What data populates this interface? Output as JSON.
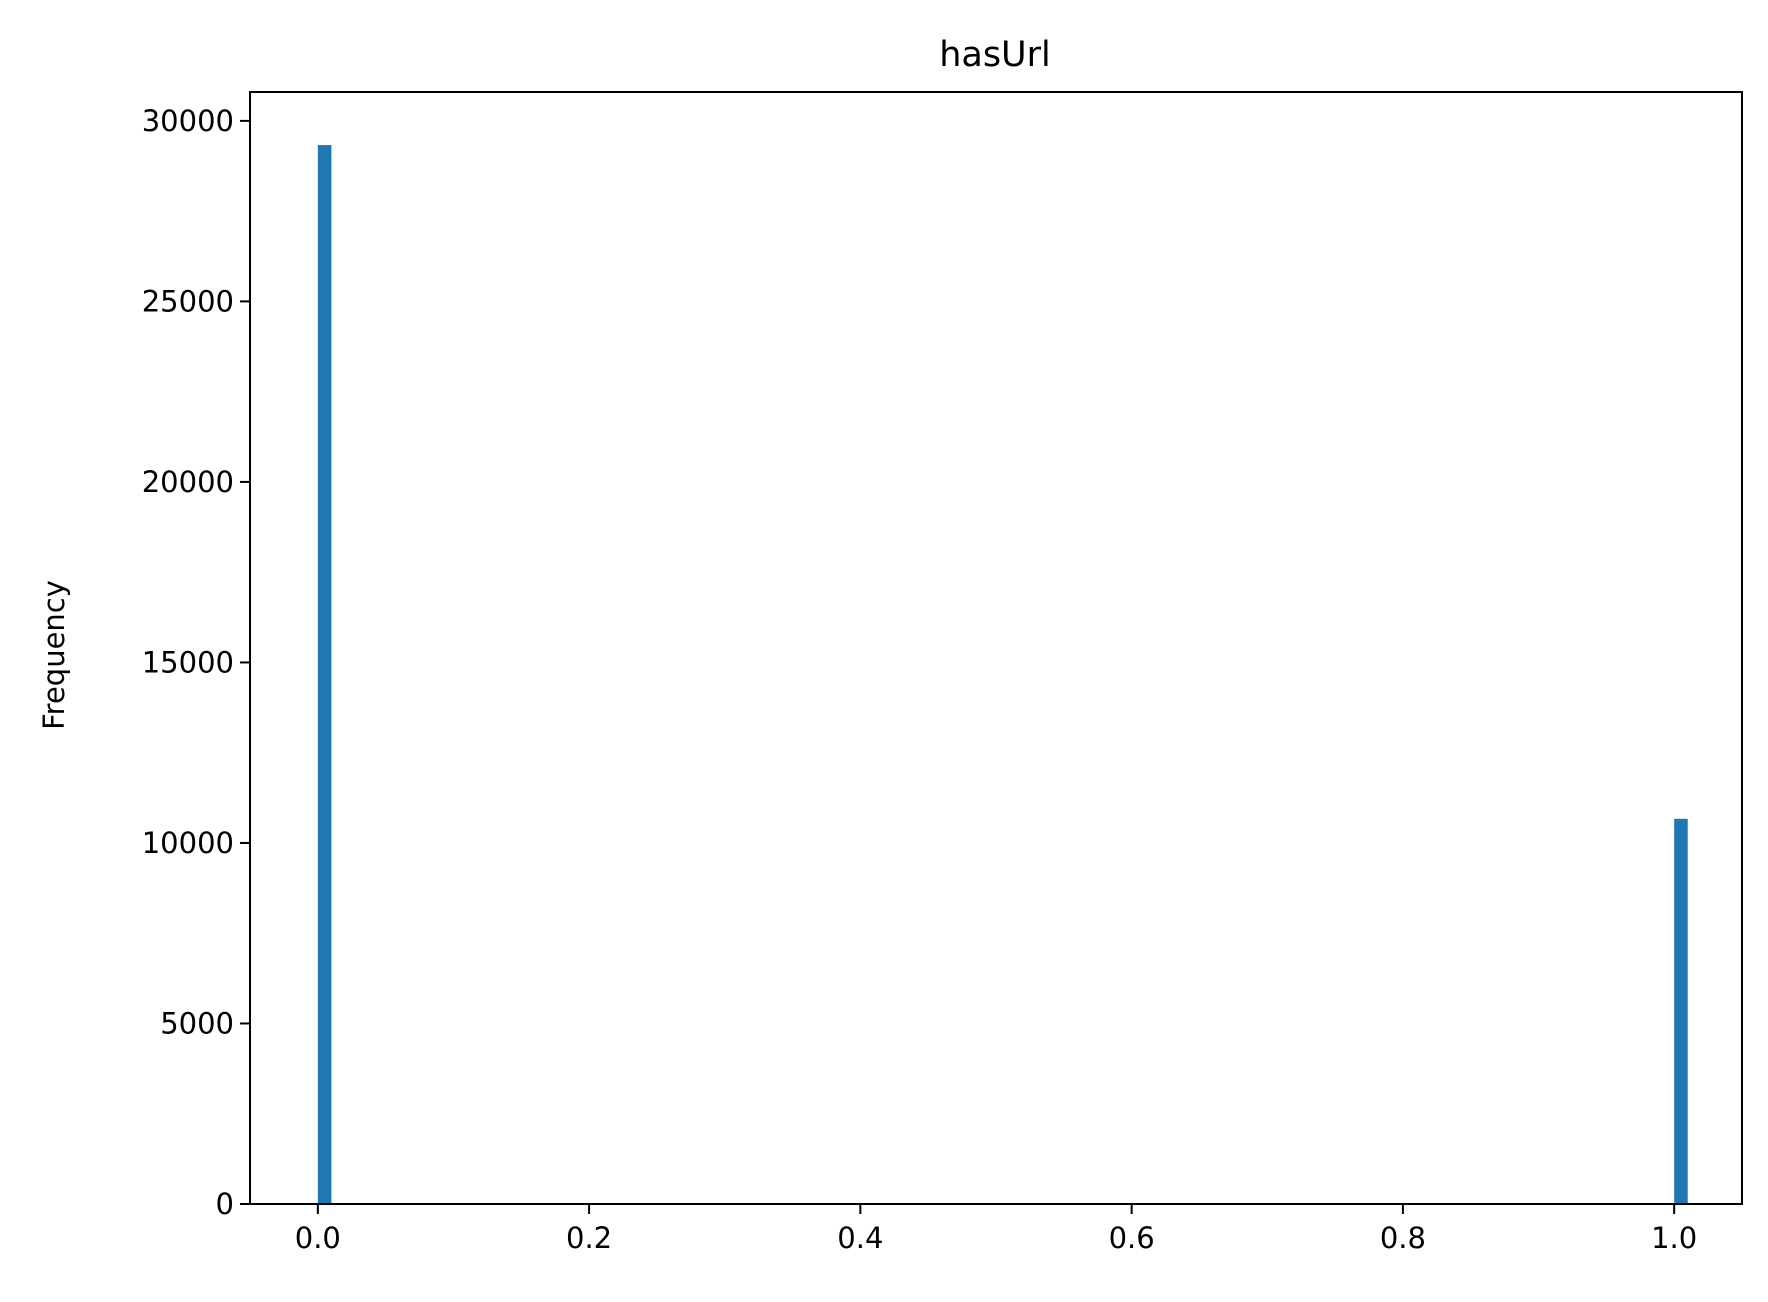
{
  "chart_data": {
    "type": "bar",
    "title": "hasUrl",
    "xlabel": "",
    "ylabel": "Frequency",
    "x": [
      0.0,
      1.0
    ],
    "values": [
      29330,
      10670
    ],
    "bin_width": 0.01,
    "xlim": [
      -0.05,
      1.05
    ],
    "ylim": [
      0,
      30800
    ],
    "xticks": [
      0.0,
      0.2,
      0.4,
      0.6,
      0.8,
      1.0
    ],
    "xtick_labels": [
      "0.0",
      "0.2",
      "0.4",
      "0.6",
      "0.8",
      "1.0"
    ],
    "yticks": [
      0,
      5000,
      10000,
      15000,
      20000,
      25000,
      30000
    ],
    "ytick_labels": [
      "0",
      "5000",
      "10000",
      "15000",
      "20000",
      "25000",
      "30000"
    ],
    "grid": false,
    "bar_color": "#1f77b4"
  }
}
